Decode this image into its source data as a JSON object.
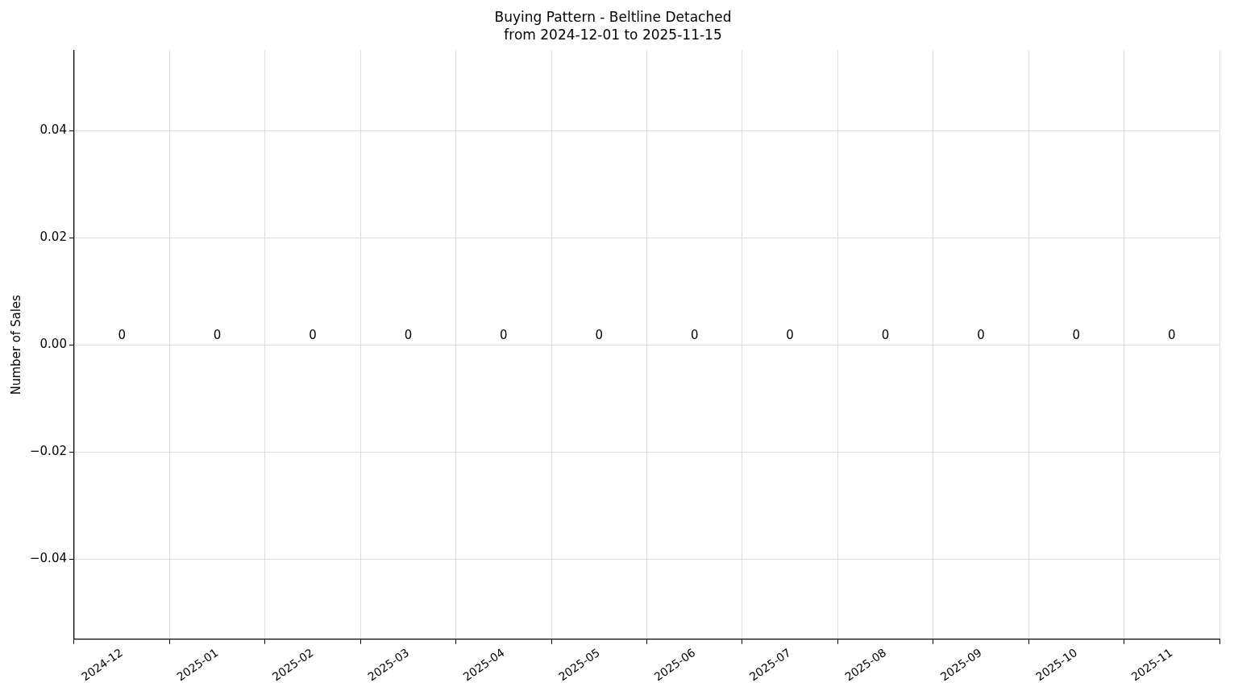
{
  "chart_data": {
    "type": "bar",
    "title": "Buying Pattern - Beltline Detached",
    "subtitle": "from 2024-12-01 to 2025-11-15",
    "ylabel": "Number of Sales",
    "categories": [
      "2024-12",
      "2025-01",
      "2025-02",
      "2025-03",
      "2025-04",
      "2025-05",
      "2025-06",
      "2025-07",
      "2025-08",
      "2025-09",
      "2025-10",
      "2025-11"
    ],
    "values": [
      0,
      0,
      0,
      0,
      0,
      0,
      0,
      0,
      0,
      0,
      0,
      0
    ],
    "ylim": [
      -0.055,
      0.055
    ],
    "yticks": [
      {
        "value": -0.04,
        "label": "−0.04"
      },
      {
        "value": -0.02,
        "label": "−0.02"
      },
      {
        "value": 0,
        "label": "0.00"
      },
      {
        "value": 0.02,
        "label": "0.02"
      },
      {
        "value": 0.04,
        "label": "0.04"
      }
    ],
    "grid": true,
    "data_labels": true
  }
}
